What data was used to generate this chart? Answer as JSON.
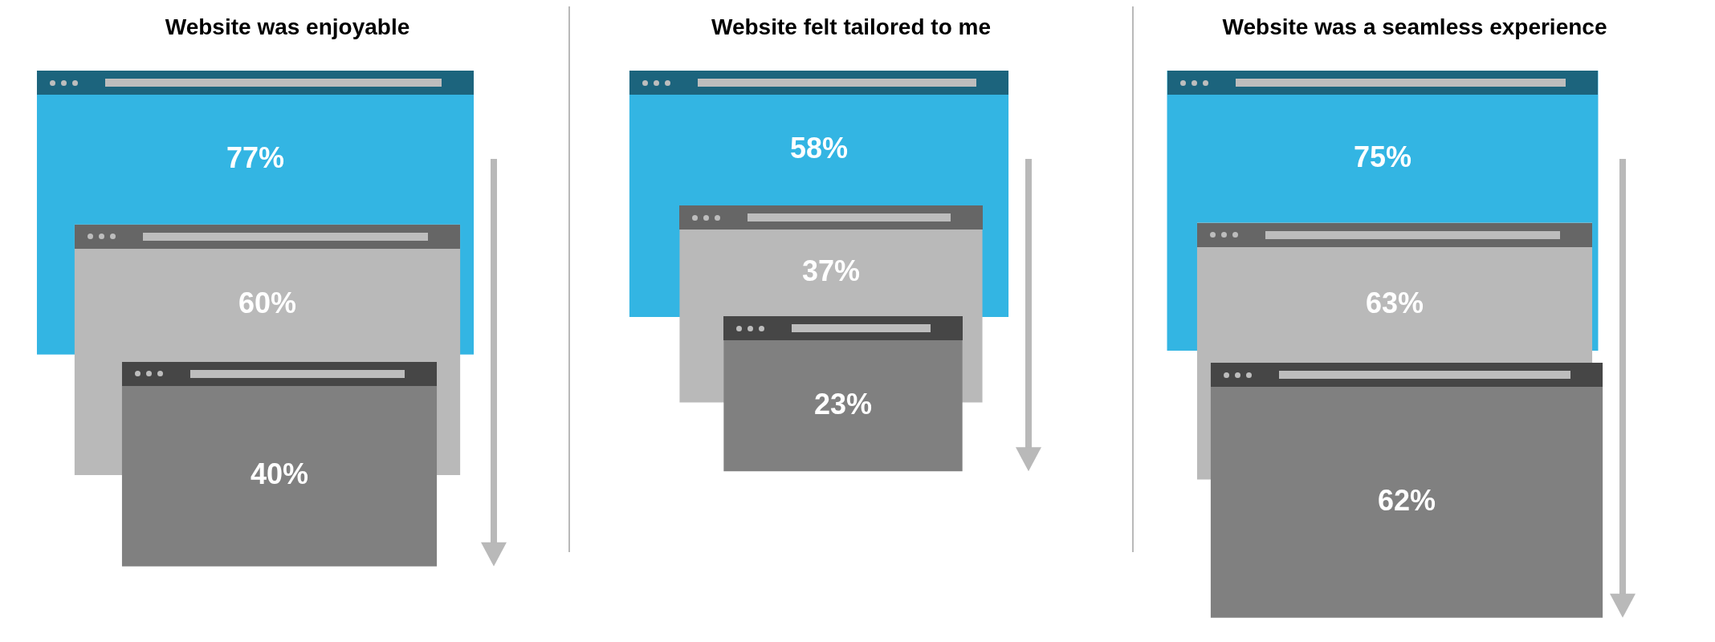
{
  "chart_data": [
    {
      "type": "other",
      "title": "Website was enjoyable",
      "categories": [
        null,
        null,
        null
      ],
      "values": [
        77,
        60,
        40
      ],
      "value_labels": [
        "77%",
        "60%",
        "40%"
      ],
      "colors": [
        "#33b5e3",
        "#b9b9b9",
        "#808080"
      ]
    },
    {
      "type": "other",
      "title": "Website felt tailored to me",
      "categories": [
        null,
        null,
        null
      ],
      "values": [
        58,
        37,
        23
      ],
      "value_labels": [
        "58%",
        "37%",
        "23%"
      ],
      "colors": [
        "#33b5e3",
        "#b9b9b9",
        "#808080"
      ]
    },
    {
      "type": "other",
      "title": "Website was a seamless experience",
      "categories": [
        null,
        null,
        null
      ],
      "values": [
        75,
        63,
        62
      ],
      "value_labels": [
        "75%",
        "63%",
        "62%"
      ],
      "colors": [
        "#33b5e3",
        "#b9b9b9",
        "#808080"
      ]
    }
  ]
}
